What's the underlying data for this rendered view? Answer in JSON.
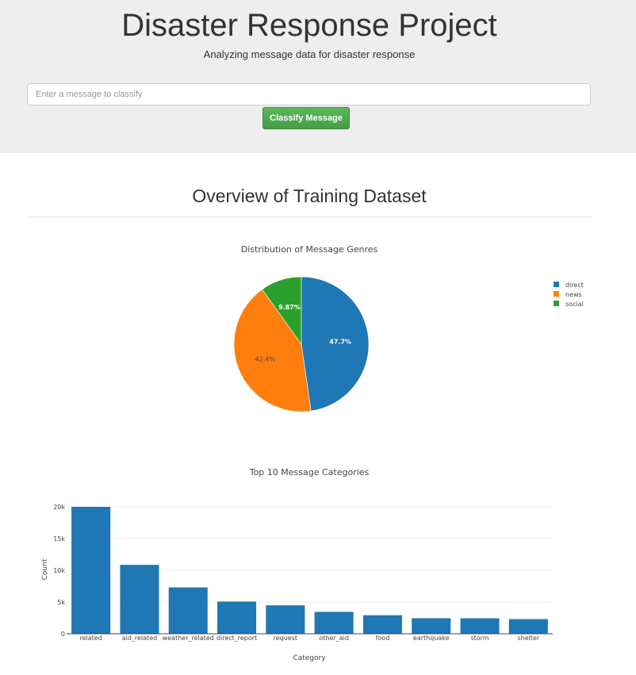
{
  "header": {
    "title": "Disaster Response Project",
    "subtitle": "Analyzing message data for disaster response",
    "input_placeholder": "Enter a message to classify",
    "button_label": "Classify Message",
    "button_color": "#5cb85c"
  },
  "overview": {
    "title": "Overview of Training Dataset"
  },
  "chart_data": [
    {
      "type": "pie",
      "title": "Distribution of Message Genres",
      "labels": [
        "direct",
        "news",
        "social"
      ],
      "values": [
        47.7,
        42.4,
        9.87
      ],
      "percent_labels": [
        "47.7%",
        "42.4%",
        "9.87%"
      ],
      "colors": [
        "#1f77b4",
        "#ff7f0e",
        "#2ca02c"
      ],
      "legend_position": "top-right"
    },
    {
      "type": "bar",
      "title": "Top 10 Message Categories",
      "xlabel": "Category",
      "ylabel": "Count",
      "categories": [
        "related",
        "aid_related",
        "weather_related",
        "direct_report",
        "request",
        "other_aid",
        "food",
        "earthquake",
        "storm",
        "shelter"
      ],
      "values": [
        20000,
        10860,
        7300,
        5075,
        4480,
        3450,
        2920,
        2450,
        2440,
        2310
      ],
      "ylim": [
        0,
        20000
      ],
      "yticks": [
        0,
        5000,
        10000,
        15000,
        20000
      ],
      "ytick_labels": [
        "0",
        "5k",
        "10k",
        "15k",
        "20k"
      ],
      "bar_color": "#1f77b4",
      "grid": true
    }
  ]
}
